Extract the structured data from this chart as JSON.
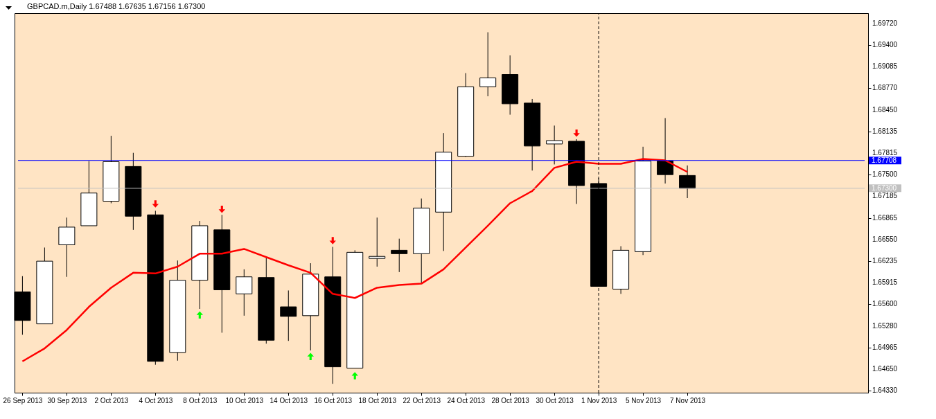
{
  "chart_data": {
    "type": "candlestick",
    "title": "GBPCAD.m,Daily 1.67488 1.67635 1.67156 1.67300",
    "categories": [
      "26 Sep 2013",
      null,
      "30 Sep 2013",
      null,
      "2 Oct 2013",
      null,
      "4 Oct 2013",
      null,
      "8 Oct 2013",
      null,
      "10 Oct 2013",
      null,
      "14 Oct 2013",
      null,
      "16 Oct 2013",
      null,
      "18 Oct 2013",
      null,
      "22 Oct 2013",
      null,
      "24 Oct 2013",
      null,
      "28 Oct 2013",
      null,
      "30 Oct 2013",
      null,
      "1 Nov 2013",
      null,
      "5 Nov 2013",
      null,
      "7 Nov 2013"
    ],
    "ohlc": [
      [
        1.6578,
        1.6601,
        1.6515,
        1.6536
      ],
      [
        1.6531,
        1.6643,
        1.6531,
        1.6623
      ],
      [
        1.6647,
        1.6687,
        1.66,
        1.6673
      ],
      [
        1.6675,
        1.677,
        1.6675,
        1.6723
      ],
      [
        1.6711,
        1.6807,
        1.6708,
        1.6769
      ],
      [
        1.6762,
        1.6782,
        1.6669,
        1.6689
      ],
      [
        1.6691,
        1.6697,
        1.6471,
        1.6476
      ],
      [
        1.6489,
        1.6624,
        1.6477,
        1.6595
      ],
      [
        1.6595,
        1.6682,
        1.6553,
        1.6675
      ],
      [
        1.6669,
        1.6691,
        1.6518,
        1.6581
      ],
      [
        1.6575,
        1.6611,
        1.6543,
        1.66
      ],
      [
        1.6599,
        1.6628,
        1.6502,
        1.6507
      ],
      [
        1.6556,
        1.658,
        1.6506,
        1.6542
      ],
      [
        1.6543,
        1.662,
        1.6492,
        1.6604
      ],
      [
        1.66,
        1.6644,
        1.6443,
        1.6468
      ],
      [
        1.6466,
        1.6639,
        1.6466,
        1.6636
      ],
      [
        1.6627,
        1.6687,
        1.6615,
        1.663
      ],
      [
        1.6639,
        1.6656,
        1.6607,
        1.6634
      ],
      [
        1.6634,
        1.6715,
        1.6591,
        1.6701
      ],
      [
        1.6695,
        1.6811,
        1.6638,
        1.6783
      ],
      [
        1.6777,
        1.6899,
        1.6776,
        1.6879
      ],
      [
        1.6879,
        1.6959,
        1.6865,
        1.6892
      ],
      [
        1.6897,
        1.6925,
        1.6838,
        1.6854
      ],
      [
        1.6855,
        1.6861,
        1.6756,
        1.6792
      ],
      [
        1.6795,
        1.6822,
        1.6765,
        1.68
      ],
      [
        1.6799,
        1.6802,
        1.6707,
        1.6734
      ],
      [
        1.6737,
        1.6745,
        1.6586,
        1.6586
      ],
      [
        1.6582,
        1.6645,
        1.6575,
        1.6639
      ],
      [
        1.6637,
        1.6791,
        1.6632,
        1.677
      ],
      [
        1.677,
        1.6833,
        1.6737,
        1.675
      ],
      [
        1.67488,
        1.67635,
        1.67156,
        1.673
      ]
    ],
    "series": [
      {
        "type": "line",
        "color": "#ff0000",
        "values": [
          1.6476,
          1.6495,
          1.6522,
          1.6556,
          1.6584,
          1.6606,
          1.6605,
          1.6615,
          1.6634,
          1.6634,
          1.6641,
          1.6629,
          1.6617,
          1.6606,
          1.6575,
          1.6569,
          1.6584,
          1.6588,
          1.659,
          1.6611,
          1.6643,
          1.6675,
          1.6708,
          1.6726,
          1.676,
          1.6769,
          1.6766,
          1.6766,
          1.6773,
          1.6771,
          1.6754
        ]
      },
      {
        "type": "scatter",
        "color": "#ff0000",
        "marker": "triangle",
        "values": [
          null,
          null,
          null,
          null,
          null,
          null,
          1.6707,
          null,
          null,
          1.6699,
          null,
          null,
          null,
          null,
          1.6653,
          null,
          null,
          null,
          null,
          null,
          null,
          null,
          null,
          null,
          null,
          1.6811,
          null,
          null,
          null,
          null,
          null
        ]
      },
      {
        "type": "scatter",
        "color": "#00ff00",
        "marker": "triangle",
        "values": [
          null,
          null,
          null,
          null,
          null,
          null,
          null,
          null,
          1.6544,
          null,
          null,
          null,
          null,
          1.6483,
          null,
          1.6455,
          null,
          null,
          null,
          null,
          null,
          null,
          null,
          null,
          null,
          null,
          null,
          null,
          null,
          null,
          null
        ]
      }
    ],
    "ylim": [
      1.643,
      1.6987
    ],
    "yticks": [
      {
        "value": 1.6972,
        "label": "1.69720"
      },
      {
        "value": 1.694,
        "label": "1.69400"
      },
      {
        "value": 1.69085,
        "label": "1.69085"
      },
      {
        "value": 1.6877,
        "label": "1.68770"
      },
      {
        "value": 1.6845,
        "label": "1.68450"
      },
      {
        "value": 1.68135,
        "label": "1.68135"
      },
      {
        "value": 1.67815,
        "label": "1.67815"
      },
      {
        "value": 1.675,
        "label": "1.67500"
      },
      {
        "value": 1.67185,
        "label": "1.67185"
      },
      {
        "value": 1.66865,
        "label": "1.66865"
      },
      {
        "value": 1.6655,
        "label": "1.66550"
      },
      {
        "value": 1.66235,
        "label": "1.66235"
      },
      {
        "value": 1.65915,
        "label": "1.65915"
      },
      {
        "value": 1.656,
        "label": "1.65600"
      },
      {
        "value": 1.6528,
        "label": "1.65280"
      },
      {
        "value": 1.64965,
        "label": "1.64965"
      },
      {
        "value": 1.6465,
        "label": "1.64650"
      },
      {
        "value": 1.6433,
        "label": "1.64330"
      }
    ],
    "ref_lines": [
      {
        "axis": "y",
        "value": 1.67708,
        "label": "1.67708",
        "color": "#0000ff"
      },
      {
        "axis": "y",
        "value": 1.673,
        "label": "1.67300",
        "color": "#c0c0c0"
      },
      {
        "axis": "x",
        "value": "1 Nov 2013",
        "color": "#000000",
        "line_style": "dashed"
      }
    ]
  }
}
